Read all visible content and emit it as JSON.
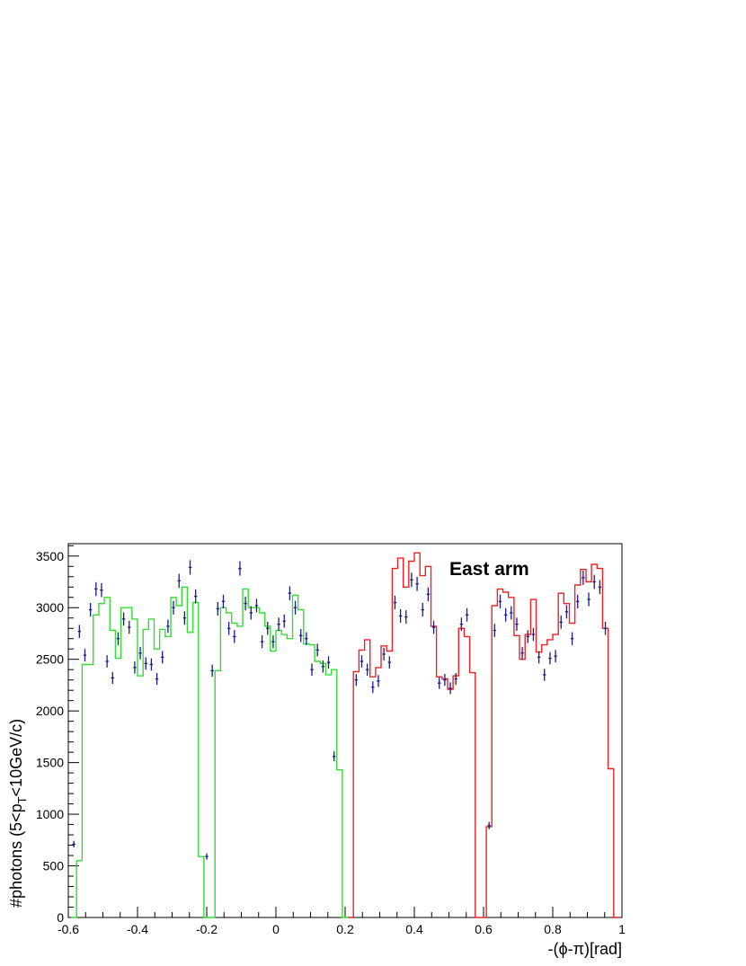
{
  "chart_data": {
    "type": "line",
    "annotation": "East arm",
    "xlabel": "-(ϕ-π)[rad]",
    "ylabel": "#photons (5<p_T<10GeV/c)",
    "xlim": [
      -0.6,
      1.0
    ],
    "ylim": [
      0,
      3620
    ],
    "xticks": [
      "-0.6",
      "-0.4",
      "-0.2",
      "0",
      "0.2",
      "0.4",
      "0.6",
      "0.8",
      "1"
    ],
    "yticks": [
      "0",
      "500",
      "1000",
      "1500",
      "2000",
      "2500",
      "3000",
      "3500"
    ],
    "bin_width": 0.016,
    "colors": {
      "green": "#33dd33",
      "red": "#ee2222",
      "points": "#1a1a8c"
    },
    "series": [
      {
        "color": "green",
        "x_start": -0.592,
        "values": [
          0,
          550,
          2450,
          2450,
          2930,
          3040,
          3100,
          2780,
          2510,
          3000,
          3000,
          2890,
          2340,
          2790,
          2890,
          2600,
          2790,
          2720,
          3100,
          3020,
          3200,
          2760,
          3050,
          590,
          0,
          0,
          2390,
          3000,
          2950,
          2850,
          2820,
          3180,
          3000,
          3000,
          2950,
          2820,
          2580,
          2780,
          2740,
          2700,
          3120,
          2980,
          2650,
          2640,
          2480,
          2460,
          2350,
          2400,
          1430,
          0
        ]
      },
      {
        "color": "red",
        "x_start": 0.208,
        "values": [
          0,
          2380,
          2590,
          2690,
          2330,
          2420,
          2630,
          2580,
          3380,
          3480,
          3200,
          3450,
          3530,
          3310,
          3400,
          2820,
          2330,
          2310,
          2210,
          2340,
          2800,
          2720,
          2370,
          0,
          0,
          880,
          3020,
          3180,
          3150,
          3100,
          2730,
          2500,
          2740,
          3080,
          2570,
          2640,
          2690,
          2740,
          3140,
          3040,
          2850,
          3220,
          3370,
          3250,
          3420,
          3380,
          2800,
          1440,
          0
        ]
      },
      {
        "name": "points",
        "x": [
          -0.584,
          -0.568,
          -0.552,
          -0.536,
          -0.52,
          -0.504,
          -0.488,
          -0.472,
          -0.456,
          -0.44,
          -0.424,
          -0.408,
          -0.392,
          -0.376,
          -0.36,
          -0.344,
          -0.328,
          -0.312,
          -0.296,
          -0.28,
          -0.264,
          -0.248,
          -0.232,
          -0.2,
          -0.184,
          -0.168,
          -0.152,
          -0.136,
          -0.12,
          -0.104,
          -0.088,
          -0.072,
          -0.056,
          -0.04,
          -0.024,
          -0.008,
          0.008,
          0.024,
          0.04,
          0.056,
          0.072,
          0.088,
          0.104,
          0.12,
          0.136,
          0.152,
          0.168,
          0.232,
          0.248,
          0.264,
          0.28,
          0.296,
          0.312,
          0.328,
          0.344,
          0.36,
          0.376,
          0.392,
          0.408,
          0.424,
          0.44,
          0.456,
          0.472,
          0.488,
          0.504,
          0.52,
          0.536,
          0.552,
          0.616,
          0.632,
          0.648,
          0.664,
          0.68,
          0.696,
          0.712,
          0.728,
          0.744,
          0.76,
          0.776,
          0.792,
          0.808,
          0.824,
          0.84,
          0.856,
          0.872,
          0.888,
          0.904,
          0.92,
          0.936,
          0.952
        ],
        "y": [
          710,
          2770,
          2540,
          2980,
          3180,
          3170,
          2480,
          2320,
          2700,
          2890,
          2810,
          2420,
          2560,
          2460,
          2450,
          2310,
          2520,
          2820,
          3000,
          3260,
          2900,
          3390,
          3110,
          590,
          2390,
          2990,
          3060,
          2800,
          2720,
          3380,
          3040,
          2950,
          3020,
          2670,
          2800,
          2670,
          2840,
          2870,
          3140,
          3000,
          2730,
          2700,
          2400,
          2590,
          2430,
          2470,
          1560,
          2300,
          2480,
          2400,
          2230,
          2290,
          2550,
          2470,
          3050,
          2920,
          2910,
          3270,
          3230,
          2980,
          3130,
          2810,
          2270,
          2300,
          2220,
          2310,
          2840,
          2930,
          890,
          2780,
          3060,
          2930,
          2950,
          2840,
          2560,
          2720,
          2740,
          2520,
          2350,
          2510,
          2530,
          2860,
          2960,
          2700,
          3060,
          3290,
          3080,
          3250,
          3200,
          2800
        ]
      }
    ]
  }
}
